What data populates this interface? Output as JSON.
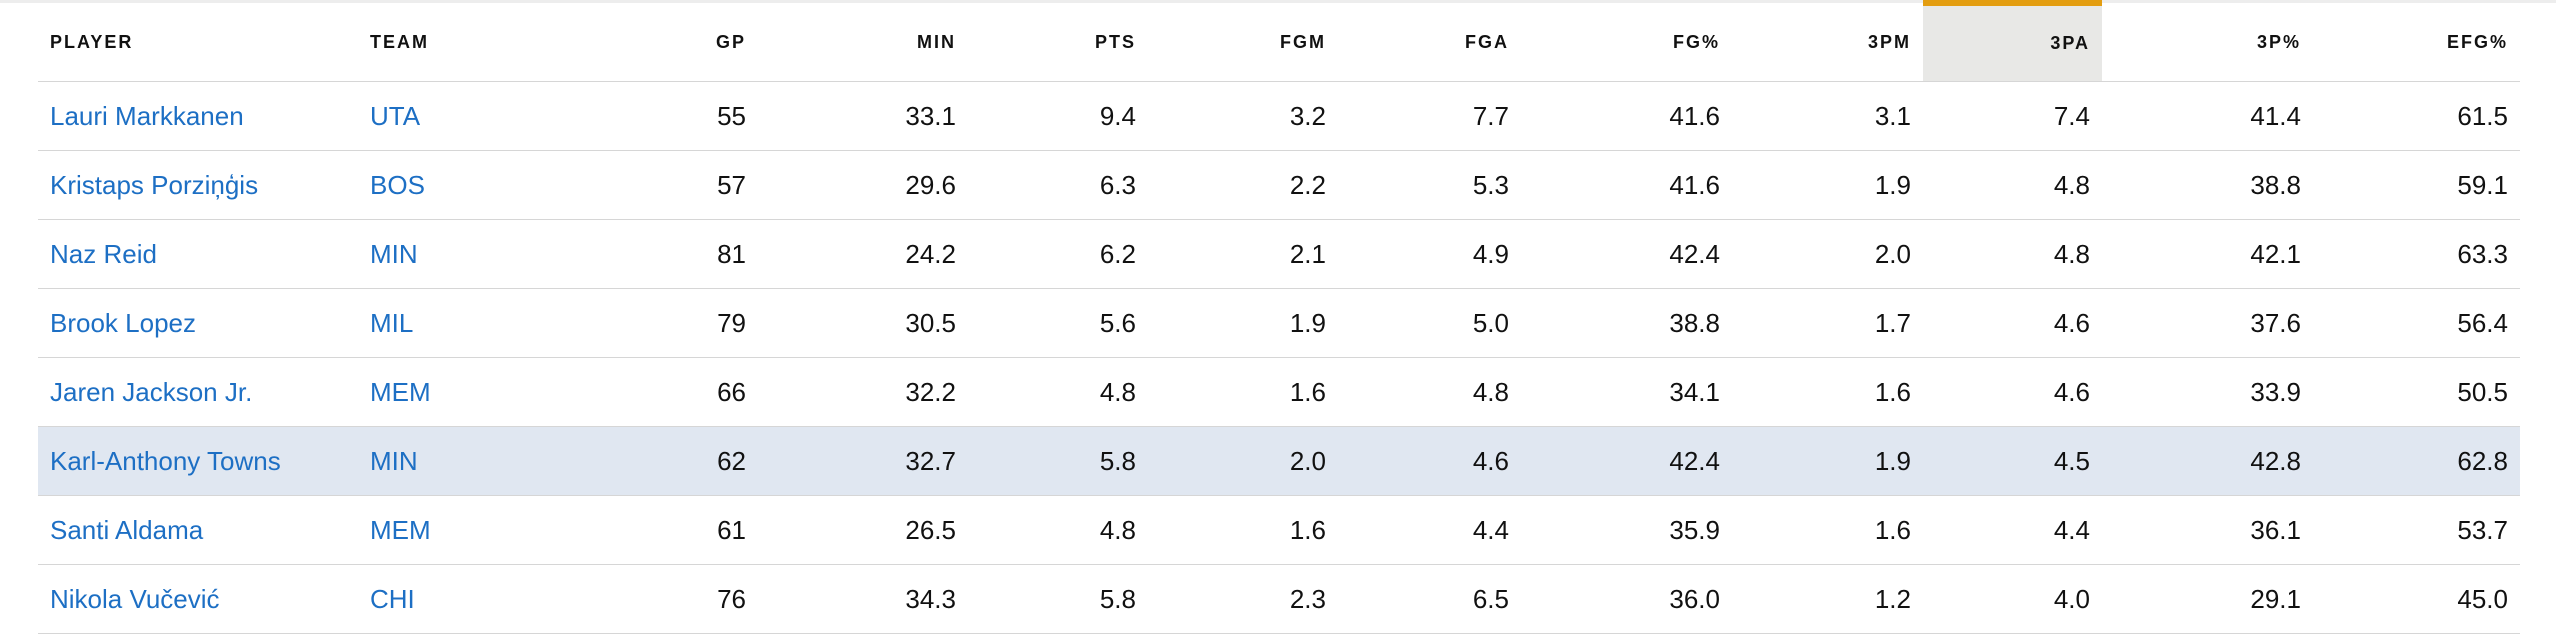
{
  "table": {
    "columns": [
      {
        "key": "player",
        "label": "PLAYER"
      },
      {
        "key": "team",
        "label": "TEAM"
      },
      {
        "key": "gp",
        "label": "GP"
      },
      {
        "key": "min",
        "label": "MIN"
      },
      {
        "key": "pts",
        "label": "PTS"
      },
      {
        "key": "fgm",
        "label": "FGM"
      },
      {
        "key": "fga",
        "label": "FGA"
      },
      {
        "key": "fgp",
        "label": "FG%"
      },
      {
        "key": "tpm",
        "label": "3PM"
      },
      {
        "key": "tpa",
        "label": "3PA"
      },
      {
        "key": "tpp",
        "label": "3P%"
      },
      {
        "key": "efg",
        "label": "EFG%"
      }
    ],
    "sorted_column": "3PA",
    "sort_accent_color": "#e39d10",
    "link_color": "#1d6fc4",
    "highlight_color": "#e0e7f1",
    "rows": [
      {
        "player": "Lauri Markkanen",
        "team": "UTA",
        "gp": "55",
        "min": "33.1",
        "pts": "9.4",
        "fgm": "3.2",
        "fga": "7.7",
        "fgp": "41.6",
        "tpm": "3.1",
        "tpa": "7.4",
        "tpp": "41.4",
        "efg": "61.5"
      },
      {
        "player": "Kristaps Porziņģis",
        "team": "BOS",
        "gp": "57",
        "min": "29.6",
        "pts": "6.3",
        "fgm": "2.2",
        "fga": "5.3",
        "fgp": "41.6",
        "tpm": "1.9",
        "tpa": "4.8",
        "tpp": "38.8",
        "efg": "59.1"
      },
      {
        "player": "Naz Reid",
        "team": "MIN",
        "gp": "81",
        "min": "24.2",
        "pts": "6.2",
        "fgm": "2.1",
        "fga": "4.9",
        "fgp": "42.4",
        "tpm": "2.0",
        "tpa": "4.8",
        "tpp": "42.1",
        "efg": "63.3"
      },
      {
        "player": "Brook Lopez",
        "team": "MIL",
        "gp": "79",
        "min": "30.5",
        "pts": "5.6",
        "fgm": "1.9",
        "fga": "5.0",
        "fgp": "38.8",
        "tpm": "1.7",
        "tpa": "4.6",
        "tpp": "37.6",
        "efg": "56.4"
      },
      {
        "player": "Jaren Jackson Jr.",
        "team": "MEM",
        "gp": "66",
        "min": "32.2",
        "pts": "4.8",
        "fgm": "1.6",
        "fga": "4.8",
        "fgp": "34.1",
        "tpm": "1.6",
        "tpa": "4.6",
        "tpp": "33.9",
        "efg": "50.5"
      },
      {
        "player": "Karl-Anthony Towns",
        "team": "MIN",
        "gp": "62",
        "min": "32.7",
        "pts": "5.8",
        "fgm": "2.0",
        "fga": "4.6",
        "fgp": "42.4",
        "tpm": "1.9",
        "tpa": "4.5",
        "tpp": "42.8",
        "efg": "62.8"
      },
      {
        "player": "Santi Aldama",
        "team": "MEM",
        "gp": "61",
        "min": "26.5",
        "pts": "4.8",
        "fgm": "1.6",
        "fga": "4.4",
        "fgp": "35.9",
        "tpm": "1.6",
        "tpa": "4.4",
        "tpp": "36.1",
        "efg": "53.7"
      },
      {
        "player": "Nikola Vučević",
        "team": "CHI",
        "gp": "76",
        "min": "34.3",
        "pts": "5.8",
        "fgm": "2.3",
        "fga": "6.5",
        "fgp": "36.0",
        "tpm": "1.2",
        "tpa": "4.0",
        "tpp": "29.1",
        "efg": "45.0"
      }
    ],
    "highlighted_row_player": "Karl-Anthony Towns"
  }
}
